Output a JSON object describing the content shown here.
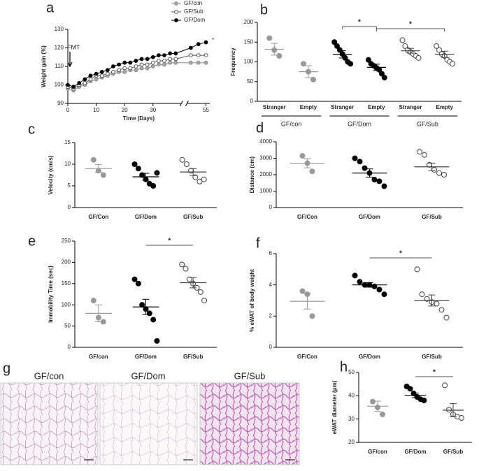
{
  "chart_data": [
    {
      "type": "line",
      "panel": "a",
      "xlabel": "Time (Days)",
      "ylabel": "Weight gain (%)",
      "x": [
        0,
        2,
        4,
        6,
        8,
        10,
        12,
        14,
        16,
        18,
        20,
        22,
        24,
        26,
        28,
        30,
        32,
        34,
        36,
        38,
        51,
        53,
        55
      ],
      "xlim": [
        0,
        56
      ],
      "xbreak": [
        40,
        50
      ],
      "xticks": [
        0,
        10,
        20,
        30,
        55
      ],
      "ylim": [
        90,
        130
      ],
      "yticks": [
        90,
        100,
        110,
        120,
        130
      ],
      "legend": "top-right",
      "annotations": [
        "FMT",
        "*"
      ],
      "series": [
        {
          "name": "GF/con",
          "color": "#888888",
          "fill": "#aaaaaa",
          "values": [
            98,
            97,
            99,
            100,
            102,
            103,
            104,
            105,
            106,
            107,
            107,
            108,
            108,
            109,
            109,
            110,
            111,
            111,
            112,
            112,
            112,
            112,
            112
          ]
        },
        {
          "name": "GF/Sub",
          "color": "#555555",
          "fill": "#ffffff",
          "values": [
            99,
            98,
            100,
            101,
            103,
            105,
            105,
            106,
            107,
            108,
            109,
            109,
            110,
            111,
            111,
            112,
            113,
            113,
            114,
            114,
            116,
            116,
            116
          ]
        },
        {
          "name": "GF/Dom",
          "color": "#000000",
          "fill": "#000000",
          "values": [
            100,
            99,
            101,
            103,
            105,
            106,
            107,
            108,
            110,
            111,
            112,
            112,
            113,
            114,
            114,
            115,
            116,
            116,
            117,
            117,
            120,
            122,
            123
          ]
        }
      ]
    },
    {
      "type": "dotplot",
      "panel": "b",
      "ylabel": "Frequency",
      "categories": [
        "Stranger",
        "Empty",
        "Stranger",
        "Empty",
        "Stranger",
        "Empty"
      ],
      "groups": [
        "GF/con",
        "GF/Dom",
        "GF/Sub"
      ],
      "ylim": [
        0,
        200
      ],
      "yticks": [
        0,
        50,
        100,
        150,
        200
      ],
      "colors": [
        "#999999",
        "#999999",
        "#000000",
        "#000000",
        "#444444",
        "#444444"
      ],
      "fills": [
        "#999999",
        "#999999",
        "#000000",
        "#000000",
        "#ffffff",
        "#ffffff"
      ],
      "points": [
        [
          160,
          130,
          115
        ],
        [
          95,
          75,
          55
        ],
        [
          150,
          140,
          130,
          120,
          110,
          100,
          95
        ],
        [
          105,
          95,
          90,
          85,
          80,
          70,
          60
        ],
        [
          155,
          140,
          130,
          125,
          120,
          115,
          110
        ],
        [
          140,
          130,
          120,
          115,
          105,
          100,
          95
        ]
      ],
      "means": [
        132,
        75,
        119,
        86,
        128,
        119
      ],
      "errors": [
        15,
        15,
        9,
        8,
        6,
        8
      ],
      "significance": [
        {
          "from": 2,
          "to": 3,
          "label": "*"
        },
        {
          "from": 3,
          "to": 5,
          "label": "*"
        }
      ]
    },
    {
      "type": "dotplot",
      "panel": "c",
      "ylabel": "Velocity (cm/s)",
      "categories": [
        "GF/Con",
        "GF/Dom",
        "GF/Sub"
      ],
      "ylim": [
        0,
        15
      ],
      "yticks": [
        0,
        5,
        10,
        15
      ],
      "colors": [
        "#999999",
        "#000000",
        "#444444"
      ],
      "fills": [
        "#999999",
        "#000000",
        "#ffffff"
      ],
      "points": [
        [
          11,
          8.5,
          7.5
        ],
        [
          10,
          9,
          7.5,
          6.5,
          5.5,
          5,
          8
        ],
        [
          11,
          10,
          8.5,
          7,
          6,
          6.5
        ]
      ],
      "means": [
        9,
        7.1,
        8.2
      ],
      "errors": [
        0.9,
        0.8,
        0.8
      ]
    },
    {
      "type": "dotplot",
      "panel": "d",
      "ylabel": "Distance (cm)",
      "categories": [
        "GF/Con",
        "GF/Dom",
        "GF/Sub"
      ],
      "ylim": [
        0,
        4000
      ],
      "yticks": [
        0,
        1000,
        2000,
        3000,
        4000
      ],
      "colors": [
        "#999999",
        "#000000",
        "#444444"
      ],
      "fills": [
        "#999999",
        "#000000",
        "#ffffff"
      ],
      "points": [
        [
          3150,
          2700,
          2200
        ],
        [
          3000,
          2800,
          2400,
          2100,
          1700,
          1600,
          1300
        ],
        [
          3400,
          3200,
          2600,
          2300,
          2100,
          2000
        ]
      ],
      "means": [
        2700,
        2100,
        2480
      ],
      "errors": [
        280,
        250,
        230
      ]
    },
    {
      "type": "dotplot",
      "panel": "e",
      "ylabel": "Immobility Time (sec)",
      "categories": [
        "GF/con",
        "GF/Dom",
        "GF/Sub"
      ],
      "ylim": [
        0,
        250
      ],
      "yticks": [
        0,
        50,
        100,
        150,
        200,
        250
      ],
      "colors": [
        "#999999",
        "#000000",
        "#444444"
      ],
      "fills": [
        "#999999",
        "#000000",
        "#ffffff"
      ],
      "points": [
        [
          110,
          70,
          60
        ],
        [
          160,
          150,
          100,
          90,
          80,
          65,
          15
        ],
        [
          195,
          185,
          160,
          150,
          140,
          130,
          110
        ]
      ],
      "means": [
        80,
        95,
        152
      ],
      "errors": [
        20,
        18,
        12
      ],
      "significance": [
        {
          "from": 1,
          "to": 2,
          "label": "*"
        }
      ]
    },
    {
      "type": "dotplot",
      "panel": "f",
      "ylabel": "% eWAT of body weight",
      "categories": [
        "GF/Con",
        "GF/Dom",
        "GF/Sub"
      ],
      "ylim": [
        0,
        6
      ],
      "yticks": [
        0,
        2,
        4,
        6
      ],
      "colors": [
        "#999999",
        "#000000",
        "#444444"
      ],
      "fills": [
        "#999999",
        "#000000",
        "#ffffff"
      ],
      "points": [
        [
          3.6,
          3.4,
          2.0
        ],
        [
          4.6,
          4.2,
          4.0,
          4.0,
          3.9,
          3.7,
          3.4
        ],
        [
          5.0,
          3.4,
          3.1,
          2.9,
          2.8,
          2.4,
          1.9
        ]
      ],
      "means": [
        2.95,
        4.0,
        3.0
      ],
      "errors": [
        0.5,
        0.15,
        0.35
      ],
      "significance": [
        {
          "from": 1,
          "to": 2,
          "label": "*"
        }
      ]
    },
    {
      "type": "dotplot",
      "panel": "h",
      "ylabel": "eWAT diameter (μm)",
      "categories": [
        "GF/con",
        "GF/Dom",
        "GF/Sub"
      ],
      "ylim": [
        20,
        50
      ],
      "yticks": [
        20,
        30,
        40,
        50
      ],
      "colors": [
        "#999999",
        "#000000",
        "#444444"
      ],
      "fills": [
        "#999999",
        "#000000",
        "#ffffff"
      ],
      "points": [
        [
          37.5,
          35,
          32
        ],
        [
          44,
          43,
          41,
          39.5,
          38.5,
          38
        ],
        [
          44.5,
          34,
          32,
          31,
          30.5
        ]
      ],
      "means": [
        35.5,
        40.2,
        33.8
      ],
      "errors": [
        2.2,
        1,
        2.8
      ],
      "significance": [
        {
          "from": 1,
          "to": 2,
          "label": "*"
        }
      ]
    }
  ],
  "images": {
    "panel": "g",
    "labels": [
      "GF/con",
      "GF/Dom",
      "GF/Sub"
    ]
  }
}
